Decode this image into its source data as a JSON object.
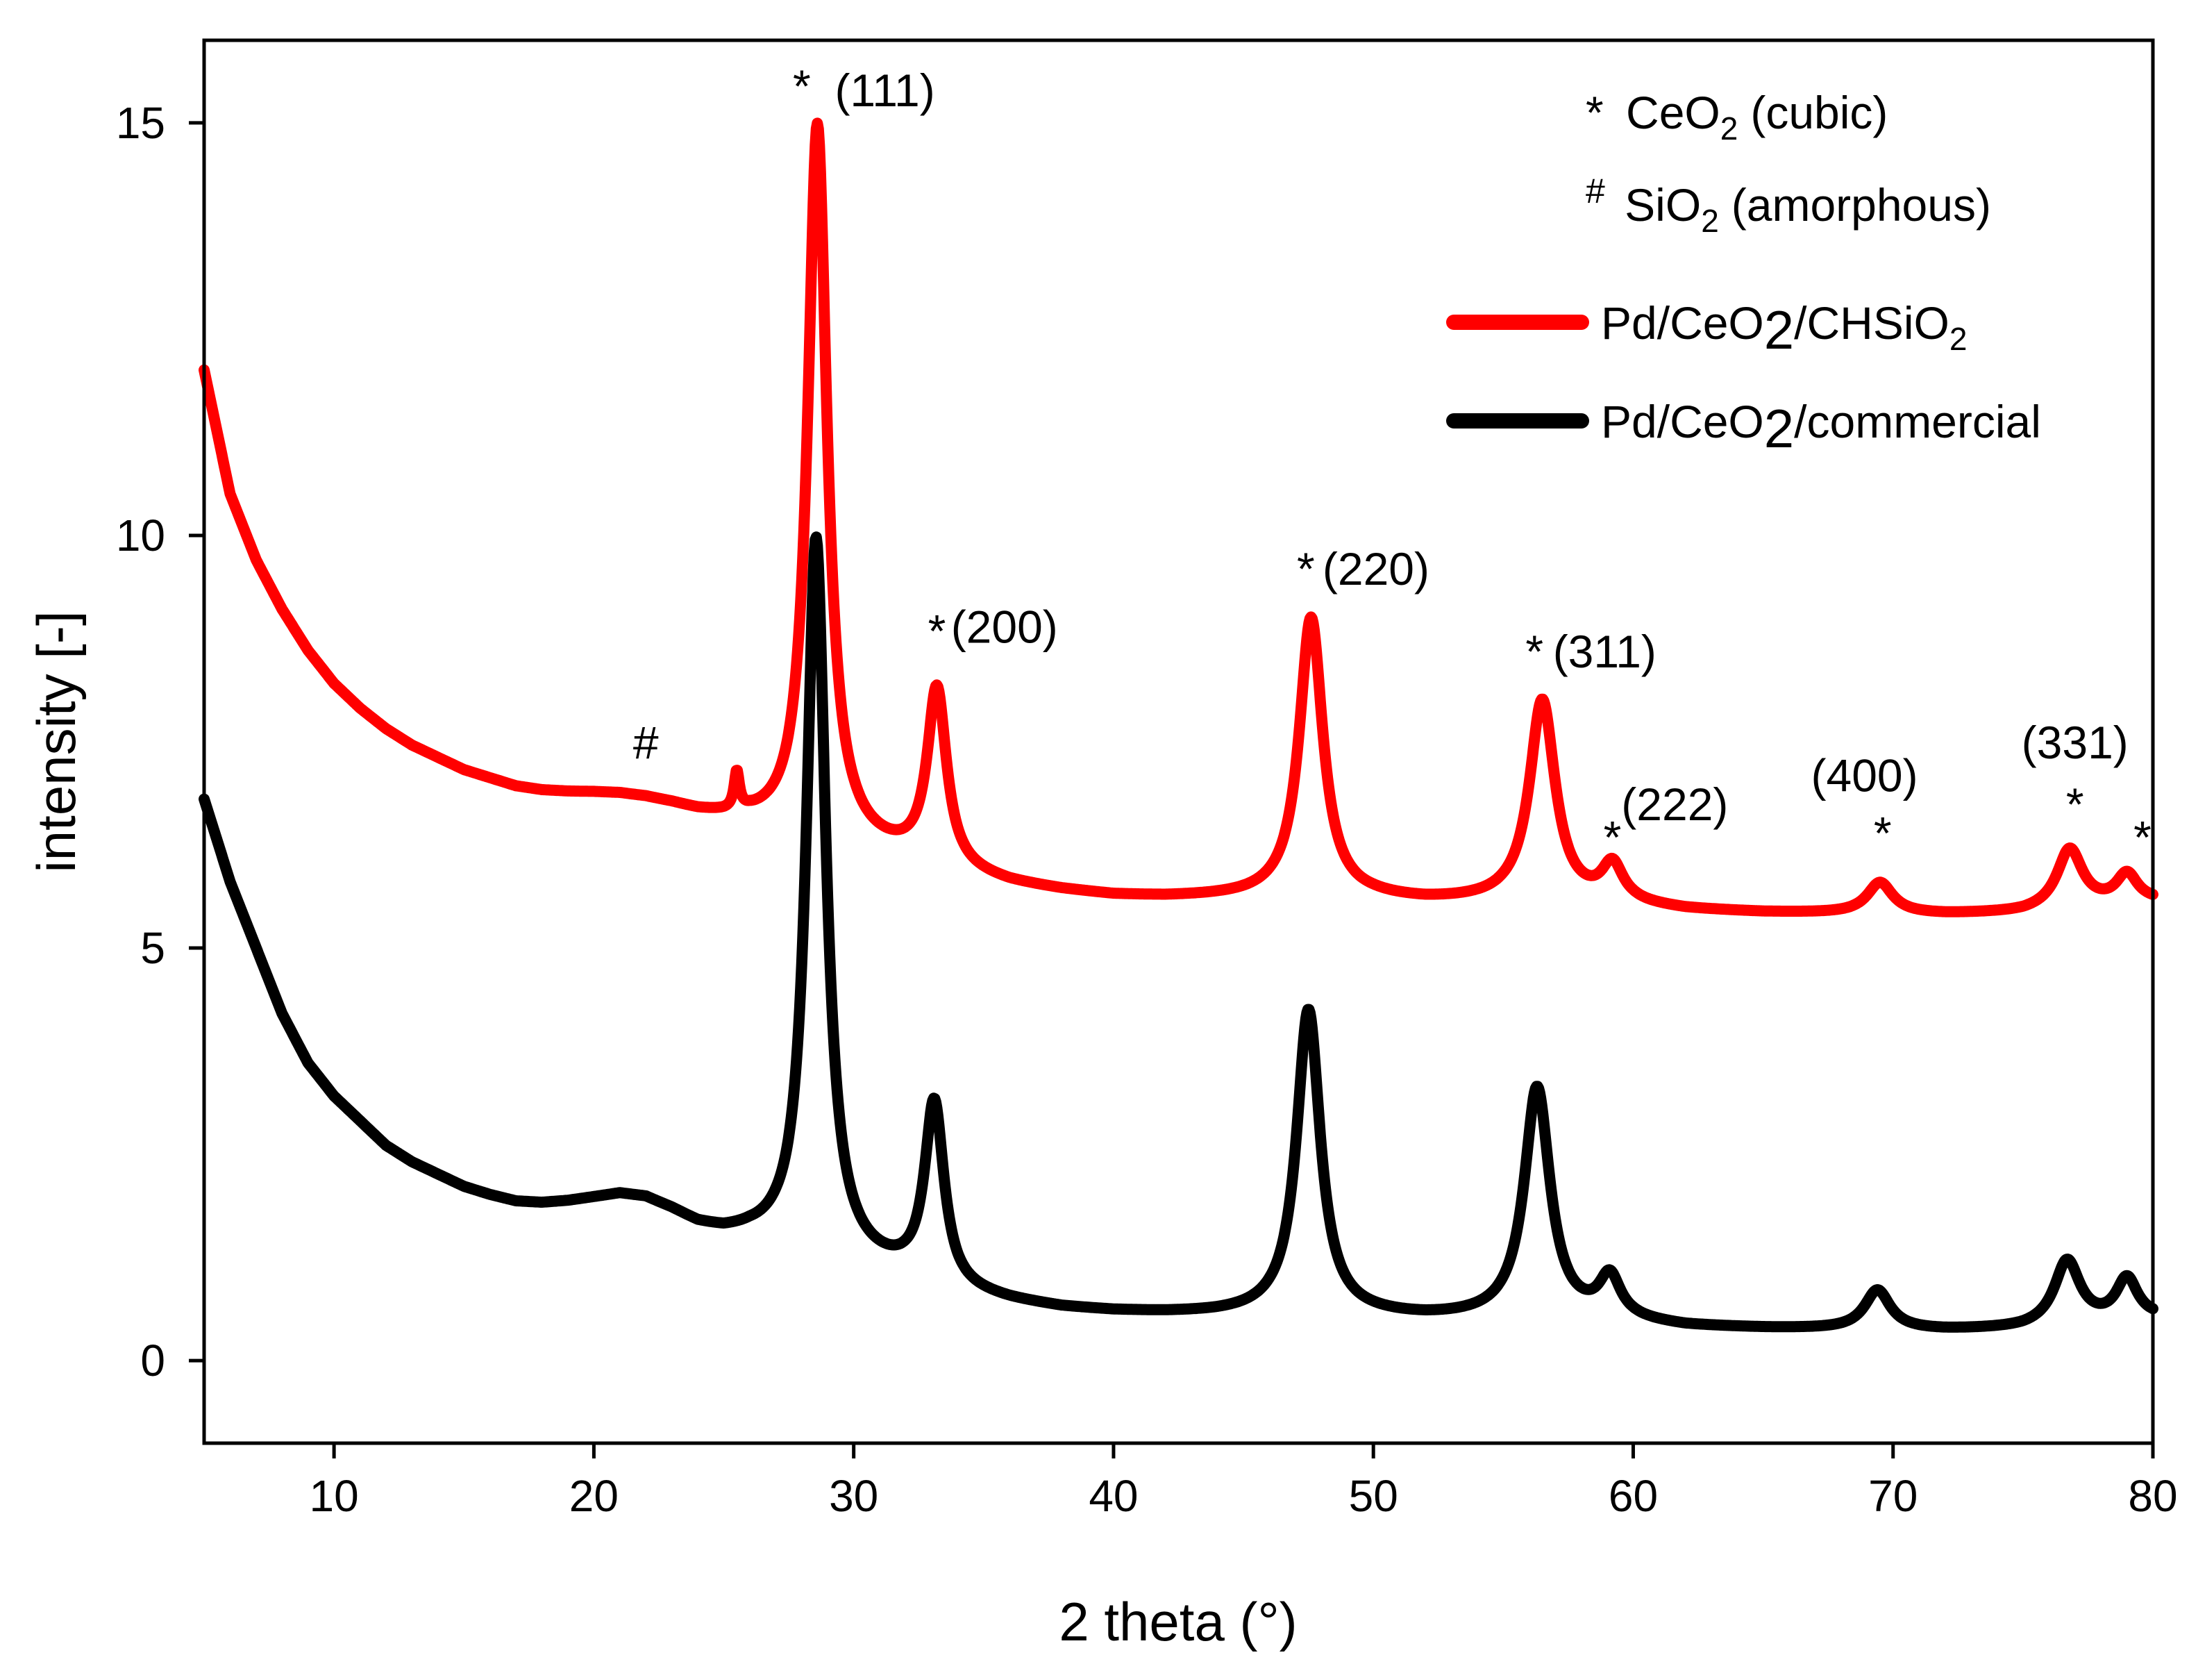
{
  "chart_data": {
    "type": "line",
    "title": "",
    "xlabel": "2 theta (°)",
    "ylabel": "intensity [-]",
    "xlim": [
      5,
      80
    ],
    "ylim": [
      -1,
      16
    ],
    "xticks": [
      10,
      20,
      30,
      40,
      50,
      60,
      70,
      80
    ],
    "yticks": [
      0,
      5,
      10,
      15
    ],
    "colors": {
      "red": "#ff0000",
      "black": "#000000"
    },
    "legend": {
      "position": "top-right",
      "notes": [
        {
          "symbol": "*",
          "formula": "CeO",
          "sub": "2",
          "desc": "(cubic)"
        },
        {
          "symbol": "#",
          "formula": "SiO",
          "sub": "2",
          "desc": "(amorphous)"
        }
      ]
    },
    "series": [
      {
        "name": "Pd/CeO2/CHSiO2",
        "label_parts": [
          "Pd/CeO",
          "2",
          "/CHSiO",
          "2"
        ],
        "color": "#ff0000",
        "background": [
          [
            5,
            12.0
          ],
          [
            6,
            10.5
          ],
          [
            7,
            9.7
          ],
          [
            8,
            9.1
          ],
          [
            9,
            8.6
          ],
          [
            10,
            8.2
          ],
          [
            11,
            7.9
          ],
          [
            12,
            7.65
          ],
          [
            13,
            7.45
          ],
          [
            14,
            7.3
          ],
          [
            15,
            7.15
          ],
          [
            16,
            7.05
          ],
          [
            17,
            6.95
          ],
          [
            18,
            6.9
          ],
          [
            19,
            6.88
          ],
          [
            20,
            6.87
          ],
          [
            21,
            6.85
          ],
          [
            22,
            6.8
          ],
          [
            23,
            6.72
          ],
          [
            24,
            6.62
          ],
          [
            25,
            6.55
          ],
          [
            26,
            6.5
          ],
          [
            27,
            6.4
          ],
          [
            28,
            6.3
          ],
          [
            30,
            6.2
          ],
          [
            32,
            6.05
          ],
          [
            34,
            5.88
          ],
          [
            36,
            5.76
          ],
          [
            38,
            5.68
          ],
          [
            40,
            5.62
          ],
          [
            42,
            5.6
          ],
          [
            44,
            5.6
          ],
          [
            46,
            5.6
          ],
          [
            50,
            5.58
          ],
          [
            52,
            5.55
          ],
          [
            55,
            5.55
          ],
          [
            58,
            5.52
          ],
          [
            60,
            5.5
          ],
          [
            62,
            5.45
          ],
          [
            65,
            5.42
          ],
          [
            70,
            5.4
          ],
          [
            72,
            5.4
          ],
          [
            75,
            5.42
          ],
          [
            78,
            5.5
          ],
          [
            80,
            5.55
          ]
        ],
        "peaks": [
          {
            "center": 25.5,
            "height": 0.45,
            "width": 0.12
          },
          {
            "center": 28.6,
            "height": 8.7,
            "width": 0.45
          },
          {
            "center": 33.2,
            "height": 2.15,
            "width": 0.45
          },
          {
            "center": 47.6,
            "height": 3.4,
            "width": 0.55
          },
          {
            "center": 56.5,
            "height": 2.45,
            "width": 0.6
          },
          {
            "center": 59.2,
            "height": 0.45,
            "width": 0.5
          },
          {
            "center": 69.5,
            "height": 0.38,
            "width": 0.6
          },
          {
            "center": 76.8,
            "height": 0.72,
            "width": 0.6
          },
          {
            "center": 79.0,
            "height": 0.35,
            "width": 0.5
          }
        ]
      },
      {
        "name": "Pd/CeO2/commercial",
        "label_parts": [
          "Pd/CeO",
          "2",
          "/commercial",
          ""
        ],
        "color": "#000000",
        "background": [
          [
            5,
            6.8
          ],
          [
            6,
            5.8
          ],
          [
            7,
            5.0
          ],
          [
            8,
            4.2
          ],
          [
            9,
            3.6
          ],
          [
            10,
            3.2
          ],
          [
            11,
            2.9
          ],
          [
            12,
            2.6
          ],
          [
            13,
            2.4
          ],
          [
            14,
            2.25
          ],
          [
            15,
            2.1
          ],
          [
            16,
            2.0
          ],
          [
            17,
            1.92
          ],
          [
            18,
            1.9
          ],
          [
            19,
            1.92
          ],
          [
            20,
            1.96
          ],
          [
            21,
            2.0
          ],
          [
            22,
            1.95
          ],
          [
            23,
            1.8
          ],
          [
            24,
            1.62
          ],
          [
            25,
            1.52
          ],
          [
            26,
            1.48
          ],
          [
            27,
            1.4
          ],
          [
            28,
            1.3
          ],
          [
            30,
            1.15
          ],
          [
            32,
            1.0
          ],
          [
            34,
            0.8
          ],
          [
            36,
            0.7
          ],
          [
            38,
            0.62
          ],
          [
            40,
            0.58
          ],
          [
            42,
            0.56
          ],
          [
            44,
            0.55
          ],
          [
            46,
            0.55
          ],
          [
            50,
            0.52
          ],
          [
            52,
            0.5
          ],
          [
            55,
            0.5
          ],
          [
            58,
            0.48
          ],
          [
            60,
            0.45
          ],
          [
            62,
            0.4
          ],
          [
            65,
            0.38
          ],
          [
            70,
            0.36
          ],
          [
            72,
            0.36
          ],
          [
            75,
            0.38
          ],
          [
            78,
            0.45
          ],
          [
            80,
            0.5
          ]
        ],
        "peaks": [
          {
            "center": 28.55,
            "height": 8.7,
            "width": 0.45
          },
          {
            "center": 33.1,
            "height": 2.2,
            "width": 0.45
          },
          {
            "center": 47.5,
            "height": 3.7,
            "width": 0.55
          },
          {
            "center": 56.3,
            "height": 2.8,
            "width": 0.6
          },
          {
            "center": 59.1,
            "height": 0.5,
            "width": 0.5
          },
          {
            "center": 69.4,
            "height": 0.48,
            "width": 0.6
          },
          {
            "center": 76.7,
            "height": 0.78,
            "width": 0.6
          },
          {
            "center": 79.0,
            "height": 0.5,
            "width": 0.5
          }
        ]
      }
    ],
    "annotations": [
      {
        "text": "*",
        "x": 28.0,
        "y": 15.25
      },
      {
        "text": "(111)",
        "x": 31.2,
        "y": 15.2
      },
      {
        "text": "*",
        "x": 33.2,
        "y": 8.65
      },
      {
        "text": "(200)",
        "x": 35.8,
        "y": 8.7
      },
      {
        "text": "*",
        "x": 47.4,
        "y": 9.4
      },
      {
        "text": "(220)",
        "x": 50.1,
        "y": 9.4
      },
      {
        "text": "*",
        "x": 56.2,
        "y": 8.4
      },
      {
        "text": "(311)",
        "x": 58.9,
        "y": 8.4
      },
      {
        "text": "#",
        "x": 22.0,
        "y": 7.3
      },
      {
        "text": "(222)",
        "x": 61.6,
        "y": 6.55
      },
      {
        "text": "*",
        "x": 59.2,
        "y": 6.15
      },
      {
        "text": "(400)",
        "x": 68.9,
        "y": 6.9
      },
      {
        "text": "*",
        "x": 69.6,
        "y": 6.2
      },
      {
        "text": "(331)",
        "x": 77.0,
        "y": 7.3
      },
      {
        "text": "*",
        "x": 77.0,
        "y": 6.55
      },
      {
        "text": "*",
        "x": 79.6,
        "y": 6.15
      }
    ]
  }
}
